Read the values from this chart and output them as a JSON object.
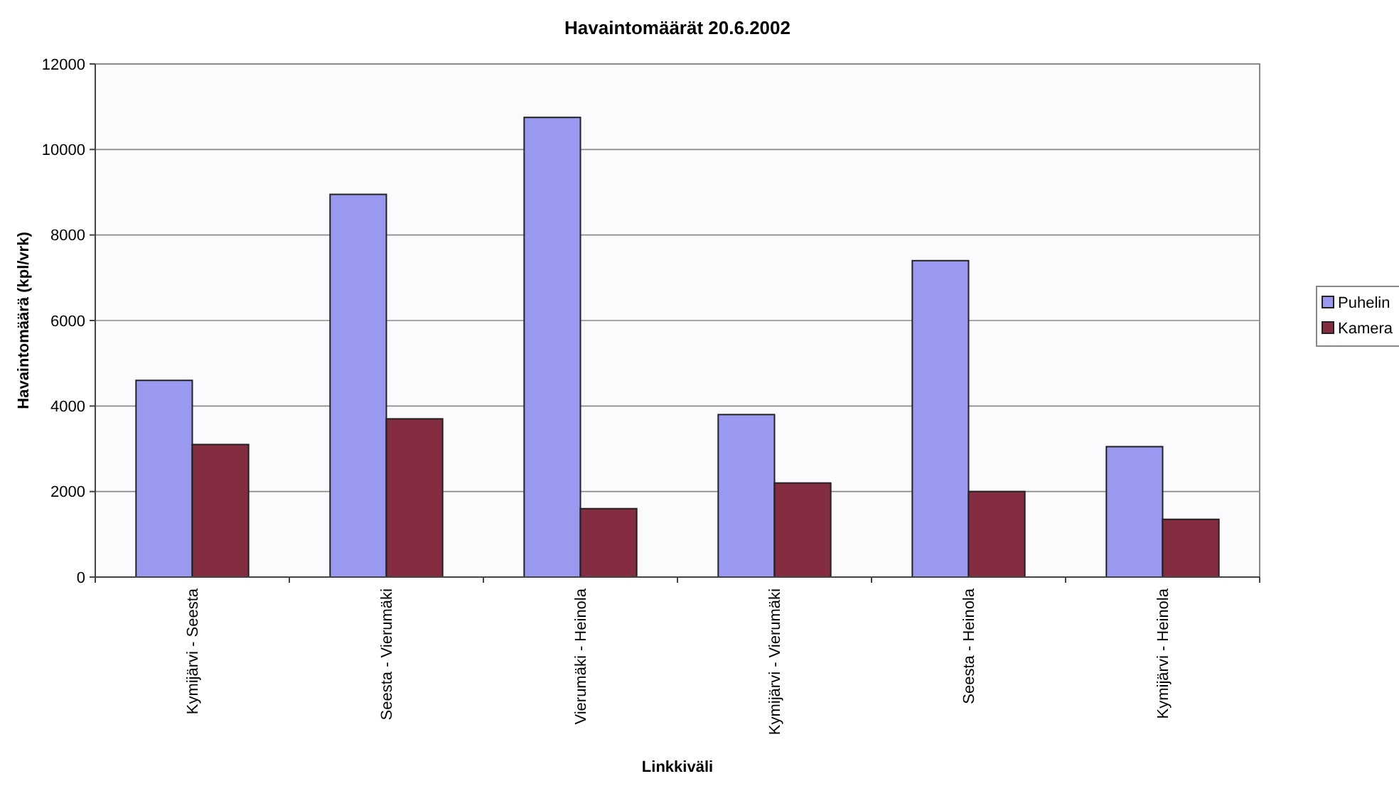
{
  "chart_data": {
    "type": "bar",
    "title": "Havaintomäärät 20.6.2002",
    "xlabel": "Linkkiväli",
    "ylabel": "Havaintomäärä (kpl/vrk)",
    "categories": [
      "Kymijärvi - Seesta",
      "Seesta - Vierumäki",
      "Vierumäki - Heinola",
      "Kymijärvi - Vierumäki",
      "Seesta - Heinola",
      "Kymijärvi - Heinola"
    ],
    "series": [
      {
        "name": "Puhelin",
        "color": "#9999f0",
        "values": [
          4600,
          8950,
          10750,
          3800,
          7400,
          3050
        ]
      },
      {
        "name": "Kamera",
        "color": "#842c40",
        "values": [
          3100,
          3700,
          1600,
          2200,
          2000,
          1350
        ]
      }
    ],
    "ylim": [
      0,
      12000
    ],
    "yticks": [
      0,
      2000,
      4000,
      6000,
      8000,
      10000,
      12000
    ],
    "grid": "y",
    "legend": "right"
  }
}
